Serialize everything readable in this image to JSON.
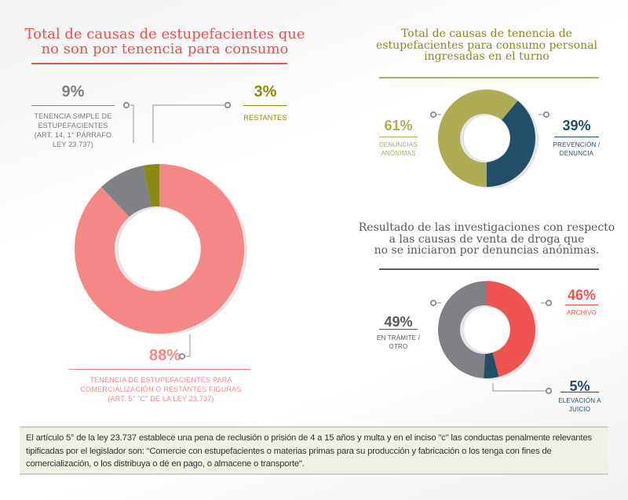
{
  "chart_data": [
    {
      "type": "pie",
      "variant": "donut",
      "title": "Total de causas de estupefacientes que no son por tenencia para consumo",
      "title_color": "#e8524f",
      "slices": [
        {
          "key": "comercializacion",
          "percent_label": "88%",
          "value": 88,
          "label": "TENENCIA DE ESTUPEFACIENTES  PARA COMERCIALIZACIÓN O RESTANTES FIGURAS (ART. 5° \"C\" DE LA LEY 23.737)",
          "color": "#f38886"
        },
        {
          "key": "tenencia-simple",
          "percent_label": "9%",
          "value": 9,
          "label": "TENENCIA SIMPLE DE ESTUPEFACIENTES (ART. 14, 1° PÁRRAFO LEY 23.737)",
          "color": "#808184"
        },
        {
          "key": "restantes",
          "percent_label": "3%",
          "value": 3,
          "label": "RESTANTES",
          "color": "#8b8a10"
        }
      ]
    },
    {
      "type": "pie",
      "variant": "donut",
      "title": "Total de causas de tenencia de estupefacientes para consumo personal ingresadas en el turno",
      "title_color": "#8b8a1e",
      "slices": [
        {
          "key": "prevencion",
          "percent_label": "39%",
          "value": 39,
          "label": "PREVENCIÓN / DENUNCIA",
          "color": "#234e68"
        },
        {
          "key": "anonimas",
          "percent_label": "61%",
          "value": 61,
          "label": "DENUNCIAS ANÓNIMAS",
          "color": "#aead55"
        }
      ]
    },
    {
      "type": "pie",
      "variant": "donut",
      "title": "Resultado de las investigaciones con respecto a las causas de venta de droga que no se iniciaron por denuncias anónimas.",
      "title_color": "#58595b",
      "slices": [
        {
          "key": "archivo",
          "percent_label": "46%",
          "value": 46,
          "label": "ARCHIVO",
          "color": "#ef5350"
        },
        {
          "key": "elevacion",
          "percent_label": "5%",
          "value": 5,
          "label": "ELEVACIÓN A JUICIO",
          "color": "#234e68"
        },
        {
          "key": "tramite",
          "percent_label": "49%",
          "value": 49,
          "label": "EN TRÁMITE / OTRO",
          "color": "#808184"
        }
      ]
    }
  ],
  "labels": {
    "c1_title_l1": "Total de causas de estupefacientes que",
    "c1_title_l2": "no son por tenencia para consumo",
    "c1_9_pct": "9%",
    "c1_9_l1": "TENENCIA SIMPLE DE",
    "c1_9_l2": "ESTUPEFACIENTES",
    "c1_9_l3": "(ART. 14, 1° PÁRRAFO",
    "c1_9_l4": "LEY 23.737)",
    "c1_3_pct": "3%",
    "c1_3_l1": "RESTANTES",
    "c1_88_pct": "88%",
    "c1_88_l1": "TENENCIA DE ESTUPEFACIENTES  PARA",
    "c1_88_l2": "COMERCIALIZACIÓN O RESTANTES FIGURAS",
    "c1_88_l3": "(ART. 5° \"C\" DE LA LEY 23.737)",
    "c2_title_l1": "Total de causas de tenencia de",
    "c2_title_l2": "estupefacientes para consumo personal",
    "c2_title_l3": "ingresadas en el turno",
    "c2_61_pct": "61%",
    "c2_61_l1": "DENUNCIAS",
    "c2_61_l2": "ANÓNIMAS",
    "c2_39_pct": "39%",
    "c2_39_l1": "PREVENCIÓN /",
    "c2_39_l2": "DENUNCIA",
    "c3_title_l1": "Resultado de las investigaciones con respecto",
    "c3_title_l2": "a las causas de venta de droga que",
    "c3_title_l3": "no se iniciaron por denuncias anónimas.",
    "c3_46_pct": "46%",
    "c3_46_l1": "ARCHIVO",
    "c3_49_pct": "49%",
    "c3_49_l1": "EN TRÁMITE /",
    "c3_49_l2": "OTRO",
    "c3_5_pct": "5%",
    "c3_5_l1": "ELEVACIÓN A",
    "c3_5_l2": "JUICIO"
  },
  "footnote": "El artículo 5° de la ley 23.737 establece una pena de reclusión o prisión de 4 a 15 años y multa y en el inciso \"c\" las conductas penalmente relevantes tipificadas por el legislador son: “Comercie con estupefacientes o materias primas para su producción y fabricación o los tenga con fines de comercialización, o los distribuya o dé en pago, o almacene o transporte\"."
}
